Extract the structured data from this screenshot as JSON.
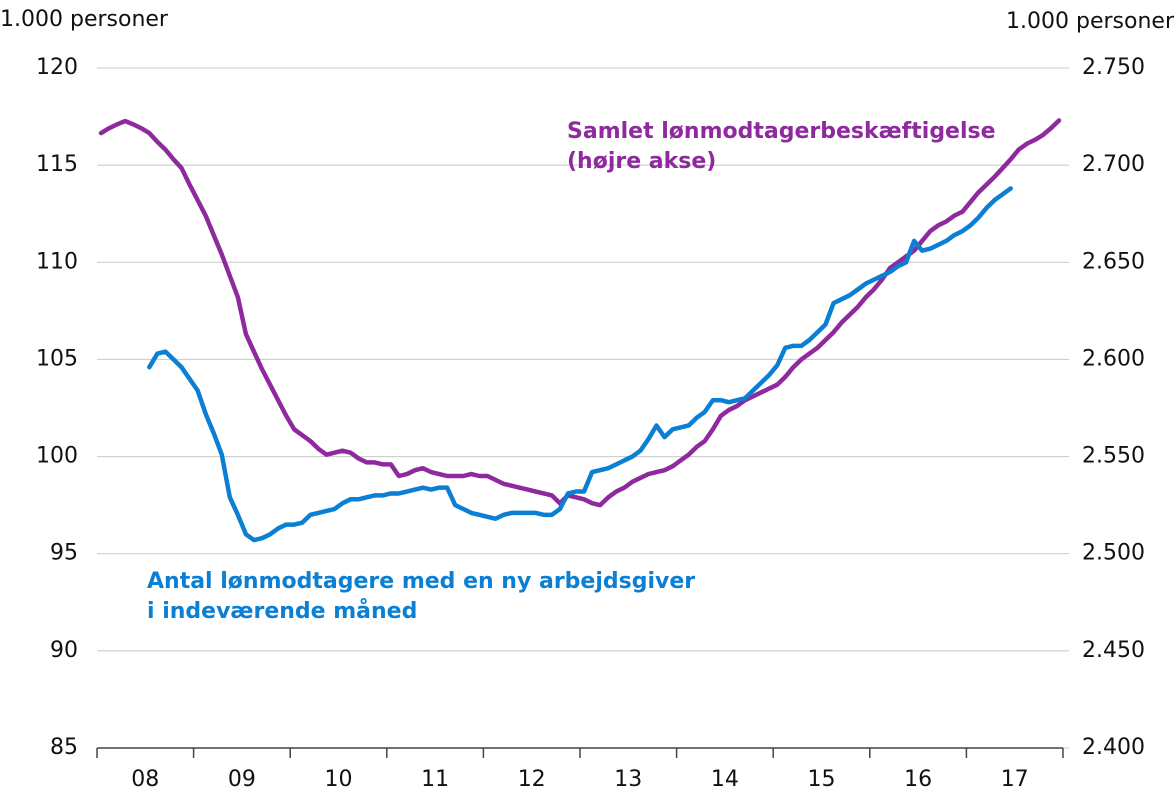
{
  "chart_data": {
    "type": "line",
    "y_axis_label": "1.000 personer",
    "y2_axis_label": "1.000 personer",
    "categories": [
      null,
      null,
      null,
      null,
      null,
      null,
      "08",
      null,
      null,
      null,
      null,
      null,
      null,
      null,
      null,
      null,
      null,
      null,
      "09",
      null,
      null,
      null,
      null,
      null,
      null,
      null,
      null,
      null,
      null,
      null,
      "10",
      null,
      null,
      null,
      null,
      null,
      null,
      null,
      null,
      null,
      null,
      null,
      "11",
      null,
      null,
      null,
      null,
      null,
      null,
      null,
      null,
      null,
      null,
      null,
      "12",
      null,
      null,
      null,
      null,
      null,
      null,
      null,
      null,
      null,
      null,
      null,
      "13",
      null,
      null,
      null,
      null,
      null,
      null,
      null,
      null,
      null,
      null,
      null,
      "14",
      null,
      null,
      null,
      null,
      null,
      null,
      null,
      null,
      null,
      null,
      null,
      "15",
      null,
      null,
      null,
      null,
      null,
      null,
      null,
      null,
      null,
      null,
      null,
      "16",
      null,
      null,
      null,
      null,
      null,
      null,
      null,
      null,
      null,
      null,
      null,
      "17",
      null,
      null,
      null,
      null,
      null
    ],
    "ylim": [
      85,
      120
    ],
    "yticks": [
      85,
      90,
      95,
      100,
      105,
      110,
      115,
      120
    ],
    "y2lim": [
      2400,
      2750
    ],
    "y2ticks": [
      {
        "value": 2400,
        "label": "2.400"
      },
      {
        "value": 2450,
        "label": "2.450"
      },
      {
        "value": 2500,
        "label": "2.500"
      },
      {
        "value": 2550,
        "label": "2.550"
      },
      {
        "value": 2600,
        "label": "2.600"
      },
      {
        "value": 2650,
        "label": "2.650"
      },
      {
        "value": 2700,
        "label": "2.700"
      },
      {
        "value": 2750,
        "label": "2.750"
      }
    ],
    "grid": true,
    "series": [
      {
        "name": "Samlet lønmodtagerbeskæftigelse\n(højre akse)",
        "color": "#8e2a9e",
        "axis": "y2",
        "values": [
          2716.5,
          2719,
          2721,
          2722.7,
          2721,
          2719,
          2716.5,
          2712,
          2708,
          2703,
          2698.5,
          2690,
          2682,
          2674,
          2664,
          2654,
          2643,
          2632,
          2613,
          2604,
          2595,
          2587,
          2579,
          2571,
          2564,
          2561,
          2558,
          2554,
          2551,
          2552,
          2553,
          2552,
          2549,
          2547,
          2547,
          2546,
          2546,
          2540,
          2541,
          2543,
          2544,
          2542,
          2541,
          2540,
          2540,
          2540,
          2541,
          2540,
          2540,
          2538,
          2536,
          2535,
          2534,
          2533,
          2532,
          2531,
          2530,
          2526,
          2530,
          2529,
          2528,
          2526,
          2525,
          2529,
          2532,
          2534,
          2537,
          2539,
          2541,
          2542,
          2543,
          2545,
          2548,
          2551,
          2555,
          2558,
          2564,
          2571,
          2574,
          2576,
          2579,
          2581,
          2583,
          2585,
          2587,
          2591,
          2596,
          2600,
          2603,
          2606,
          2610,
          2614,
          2619,
          2623,
          2627,
          2632,
          2636,
          2641,
          2647,
          2650,
          2653,
          2656,
          2661,
          2666,
          2669,
          2671,
          2674,
          2676,
          2681,
          2686,
          2690,
          2694,
          2698.5,
          2703,
          2708,
          2711,
          2713,
          2715.5,
          2719,
          2723
        ]
      },
      {
        "name": "Antal lønmodtagere med en ny arbejdsgiver\ni indeværende måned",
        "color": "#0a7fd3",
        "values": [
          null,
          null,
          null,
          null,
          null,
          null,
          104.6,
          105.3,
          105.4,
          105,
          104.6,
          104,
          103.4,
          102.2,
          101.2,
          100.1,
          97.9,
          97,
          96,
          95.7,
          95.8,
          96,
          96.3,
          96.5,
          96.5,
          96.6,
          97,
          97.1,
          97.2,
          97.3,
          97.6,
          97.8,
          97.8,
          97.9,
          98,
          98,
          98.1,
          98.1,
          98.2,
          98.3,
          98.4,
          98.3,
          98.4,
          98.4,
          97.5,
          97.3,
          97.1,
          97,
          96.9,
          96.8,
          97,
          97.1,
          97.1,
          97.1,
          97.1,
          97,
          97,
          97.3,
          98.1,
          98.2,
          98.2,
          99.2,
          99.3,
          99.4,
          99.6,
          99.8,
          100,
          100.3,
          100.9,
          101.6,
          101,
          101.4,
          101.5,
          101.6,
          102,
          102.3,
          102.9,
          102.9,
          102.8,
          102.9,
          103,
          103.4,
          103.8,
          104.2,
          104.7,
          105.6,
          105.7,
          105.7,
          106,
          106.4,
          106.8,
          107.9,
          108.1,
          108.3,
          108.6,
          108.9,
          109.1,
          109.3,
          109.5,
          109.8,
          110,
          111.1,
          110.6,
          110.7,
          110.9,
          111.1,
          111.4,
          111.6,
          111.9,
          112.3,
          112.8,
          113.2,
          113.5,
          113.8,
          null,
          null,
          null,
          null,
          null,
          null
        ]
      }
    ]
  }
}
